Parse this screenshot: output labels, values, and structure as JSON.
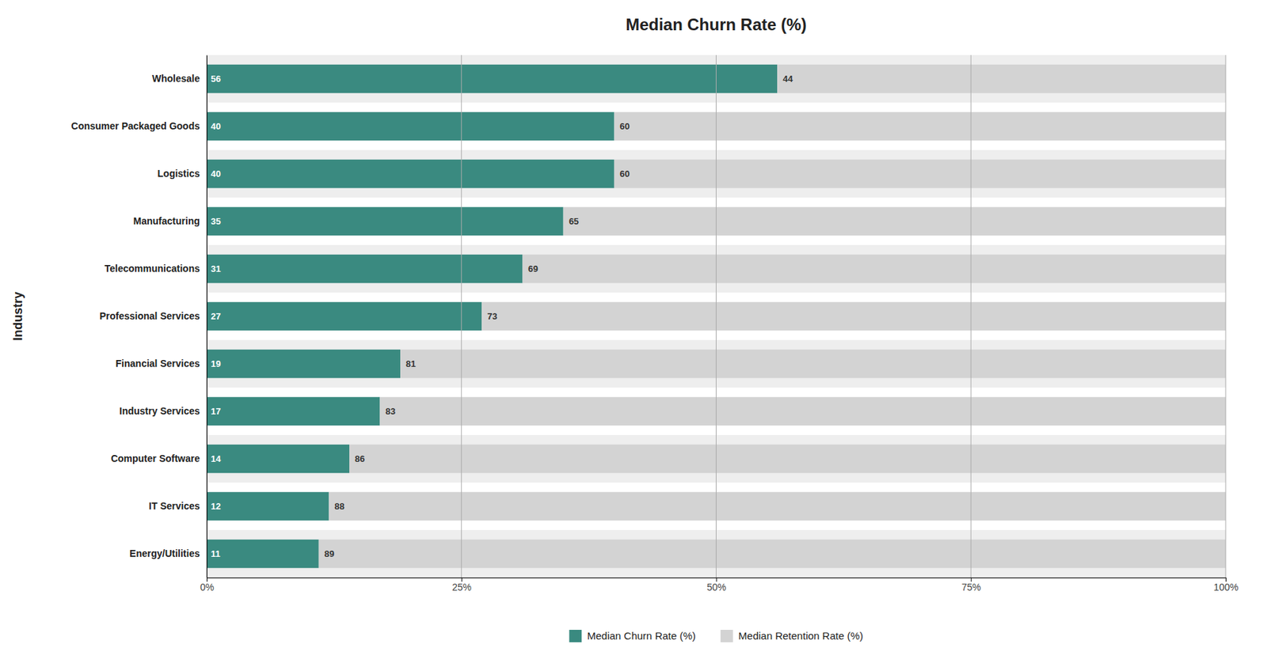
{
  "chart_data": {
    "type": "bar",
    "orientation": "horizontal",
    "stacked": true,
    "title": "Median Churn Rate (%)",
    "ylabel": "Industry",
    "categories": [
      "Energy/Utilities",
      "IT Services",
      "Computer Software",
      "Industry Services",
      "Financial Services",
      "Professional Services",
      "Telecommunications",
      "Manufacturing",
      "Logistics",
      "Consumer Packaged Goods",
      "Wholesale"
    ],
    "series": [
      {
        "name": "Median Churn Rate (%)",
        "color": "#3a8a80",
        "values": [
          11,
          12,
          14,
          17,
          19,
          27,
          31,
          35,
          40,
          40,
          56
        ]
      },
      {
        "name": "Median Retention Rate (%)",
        "color": "#d3d3d3",
        "values": [
          89,
          88,
          86,
          83,
          81,
          73,
          69,
          65,
          60,
          60,
          44
        ]
      }
    ],
    "xlim": [
      0,
      100
    ],
    "xticks": [
      {
        "value": 0,
        "label": "0%"
      },
      {
        "value": 25,
        "label": "25%"
      },
      {
        "value": 50,
        "label": "50%"
      },
      {
        "value": 75,
        "label": "75%"
      },
      {
        "value": 100,
        "label": "100%"
      }
    ],
    "grid": true,
    "legend": "bottom",
    "data_labels": true
  }
}
